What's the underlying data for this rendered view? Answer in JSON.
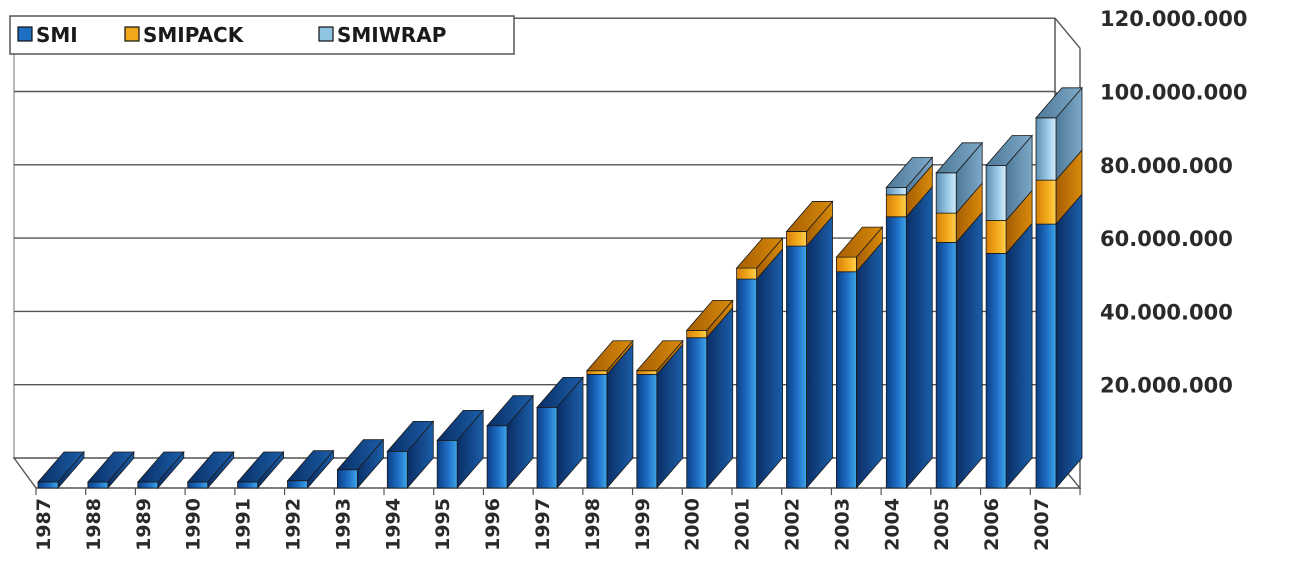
{
  "chart_data": {
    "type": "bar",
    "stacked": true,
    "three_d": true,
    "categories": [
      "1987",
      "1988",
      "1989",
      "1990",
      "1991",
      "1992",
      "1993",
      "1994",
      "1995",
      "1996",
      "1997",
      "1998",
      "1999",
      "2000",
      "2001",
      "2002",
      "2003",
      "2004",
      "2005",
      "2006",
      "2007"
    ],
    "series": [
      {
        "name": "SMI",
        "color": "#1d6fc4",
        "values": [
          0,
          0,
          0,
          0,
          0,
          2000000,
          5000000,
          10000000,
          13000000,
          17000000,
          22000000,
          31000000,
          31000000,
          41000000,
          57000000,
          66000000,
          59000000,
          74000000,
          67000000,
          64000000,
          72000000
        ]
      },
      {
        "name": "SMIPACK",
        "color": "#f2a81d",
        "values": [
          0,
          0,
          0,
          0,
          0,
          0,
          0,
          0,
          0,
          0,
          0,
          1000000,
          1000000,
          2000000,
          3000000,
          4000000,
          4000000,
          6000000,
          8000000,
          9000000,
          12000000
        ]
      },
      {
        "name": "SMIWRAP",
        "color": "#8fc4e2",
        "values": [
          0,
          0,
          0,
          0,
          0,
          0,
          0,
          0,
          0,
          0,
          0,
          0,
          0,
          0,
          0,
          0,
          0,
          2000000,
          11000000,
          15000000,
          17000000
        ]
      }
    ],
    "yticks": [
      "20.000.000",
      "40.000.000",
      "60.000.000",
      "80.000.000",
      "100.000.000",
      "120.000.000"
    ],
    "ylim": [
      0,
      120000000
    ],
    "grid": true,
    "legend_position": "top-left",
    "y_axis_position": "right"
  }
}
